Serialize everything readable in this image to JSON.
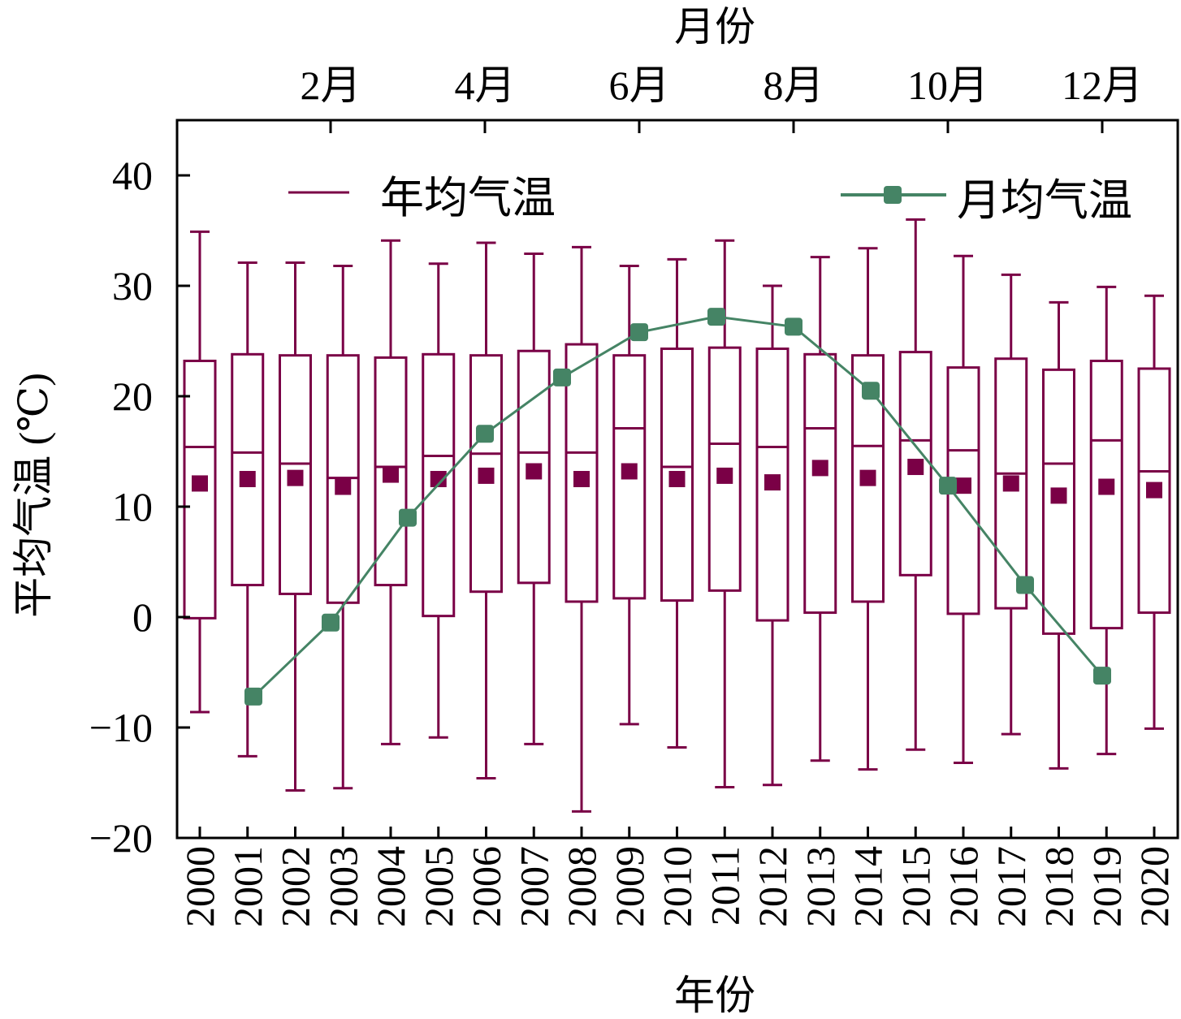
{
  "chart_data": {
    "type": "box+line",
    "ylabel": "平均气温 (℃)",
    "xlabel": "年份",
    "x2label": "月份",
    "ylim": [
      -20,
      45
    ],
    "yticks": [
      -20,
      -10,
      0,
      10,
      20,
      30,
      40
    ],
    "ytick_labels": [
      "−20",
      "−10",
      "0",
      "10",
      "20",
      "30",
      "40"
    ],
    "colors": {
      "box": "#7a0046",
      "line": "#458465"
    },
    "legend": {
      "placement": "top",
      "box_label": "年均气温",
      "line_label": "月均气温"
    },
    "years": [
      "2000",
      "2001",
      "2002",
      "2003",
      "2004",
      "2005",
      "2006",
      "2007",
      "2008",
      "2009",
      "2010",
      "2011",
      "2012",
      "2013",
      "2014",
      "2015",
      "2016",
      "2017",
      "2018",
      "2019",
      "2020"
    ],
    "boxes": [
      {
        "max": 34.9,
        "q3": 23.2,
        "median": 15.4,
        "q1": -0.1,
        "min": -8.6,
        "mean": 12.1
      },
      {
        "max": 32.1,
        "q3": 23.8,
        "median": 14.9,
        "q1": 2.9,
        "min": -12.6,
        "mean": 12.5
      },
      {
        "max": 32.1,
        "q3": 23.7,
        "median": 13.9,
        "q1": 2.1,
        "min": -15.7,
        "mean": 12.6
      },
      {
        "max": 31.8,
        "q3": 23.7,
        "median": 12.6,
        "q1": 1.3,
        "min": -15.5,
        "mean": 11.8
      },
      {
        "max": 34.1,
        "q3": 23.5,
        "median": 13.6,
        "q1": 2.9,
        "min": -11.5,
        "mean": 12.9
      },
      {
        "max": 32.0,
        "q3": 23.8,
        "median": 14.6,
        "q1": 0.1,
        "min": -10.9,
        "mean": 12.5
      },
      {
        "max": 33.9,
        "q3": 23.7,
        "median": 14.8,
        "q1": 2.3,
        "min": -14.6,
        "mean": 12.8
      },
      {
        "max": 32.9,
        "q3": 24.1,
        "median": 14.9,
        "q1": 3.1,
        "min": -11.5,
        "mean": 13.2
      },
      {
        "max": 33.5,
        "q3": 24.7,
        "median": 14.9,
        "q1": 1.4,
        "min": -17.6,
        "mean": 12.5
      },
      {
        "max": 31.8,
        "q3": 23.7,
        "median": 17.1,
        "q1": 1.7,
        "min": -9.7,
        "mean": 13.2
      },
      {
        "max": 32.4,
        "q3": 24.3,
        "median": 13.6,
        "q1": 1.5,
        "min": -11.8,
        "mean": 12.5
      },
      {
        "max": 34.1,
        "q3": 24.4,
        "median": 15.7,
        "q1": 2.4,
        "min": -15.4,
        "mean": 12.8
      },
      {
        "max": 30.0,
        "q3": 24.3,
        "median": 15.4,
        "q1": -0.3,
        "min": -15.2,
        "mean": 12.2
      },
      {
        "max": 32.6,
        "q3": 23.8,
        "median": 17.1,
        "q1": 0.4,
        "min": -13.0,
        "mean": 13.5
      },
      {
        "max": 33.4,
        "q3": 23.7,
        "median": 15.5,
        "q1": 1.4,
        "min": -13.8,
        "mean": 12.6
      },
      {
        "max": 36.0,
        "q3": 24.0,
        "median": 16.0,
        "q1": 3.8,
        "min": -12.0,
        "mean": 13.6
      },
      {
        "max": 32.7,
        "q3": 22.6,
        "median": 15.1,
        "q1": 0.3,
        "min": -13.2,
        "mean": 11.9
      },
      {
        "max": 31.0,
        "q3": 23.4,
        "median": 13.0,
        "q1": 0.8,
        "min": -10.6,
        "mean": 12.1
      },
      {
        "max": 28.5,
        "q3": 22.4,
        "median": 13.9,
        "q1": -1.5,
        "min": -13.7,
        "mean": 11.0
      },
      {
        "max": 29.9,
        "q3": 23.2,
        "median": 16.0,
        "q1": -1.0,
        "min": -12.4,
        "mean": 11.8
      },
      {
        "max": 29.1,
        "q3": 22.5,
        "median": 13.2,
        "q1": 0.4,
        "min": -10.1,
        "mean": 11.5
      }
    ],
    "months": [
      1,
      2,
      3,
      4,
      5,
      6,
      7,
      8,
      9,
      10,
      11,
      12
    ],
    "month_ticks": [
      2,
      4,
      6,
      8,
      10,
      12
    ],
    "month_tick_labels": [
      "2月",
      "4月",
      "6月",
      "8月",
      "10月",
      "12月"
    ],
    "monthly_values": [
      -7.2,
      -0.5,
      9.0,
      16.6,
      21.7,
      25.8,
      27.2,
      26.3,
      20.5,
      11.9,
      2.9,
      -5.3
    ]
  }
}
